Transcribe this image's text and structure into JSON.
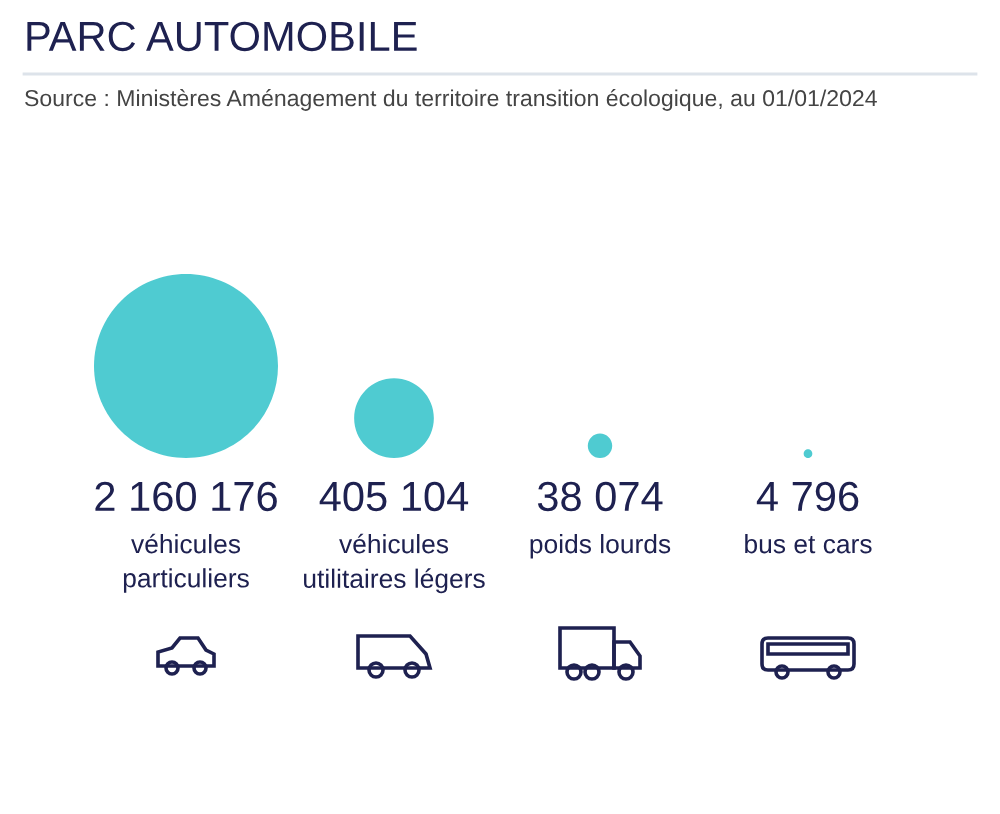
{
  "chart_data": {
    "type": "other",
    "title": "PARC AUTOMOBILE",
    "annotations": [
      "Source : Ministères Aménagement du territoire transition écologique, au 01/01/2024"
    ],
    "categories": [
      "véhicules\nparticuliers",
      "véhicules\nutilitaires légers",
      "poids lourds",
      "bus et cars"
    ],
    "values": [
      2160176,
      405104,
      38074,
      4796
    ],
    "value_labels": [
      "2 160 176",
      "405 104",
      "38 074",
      "4 796"
    ],
    "color": "#4fcbd1"
  }
}
